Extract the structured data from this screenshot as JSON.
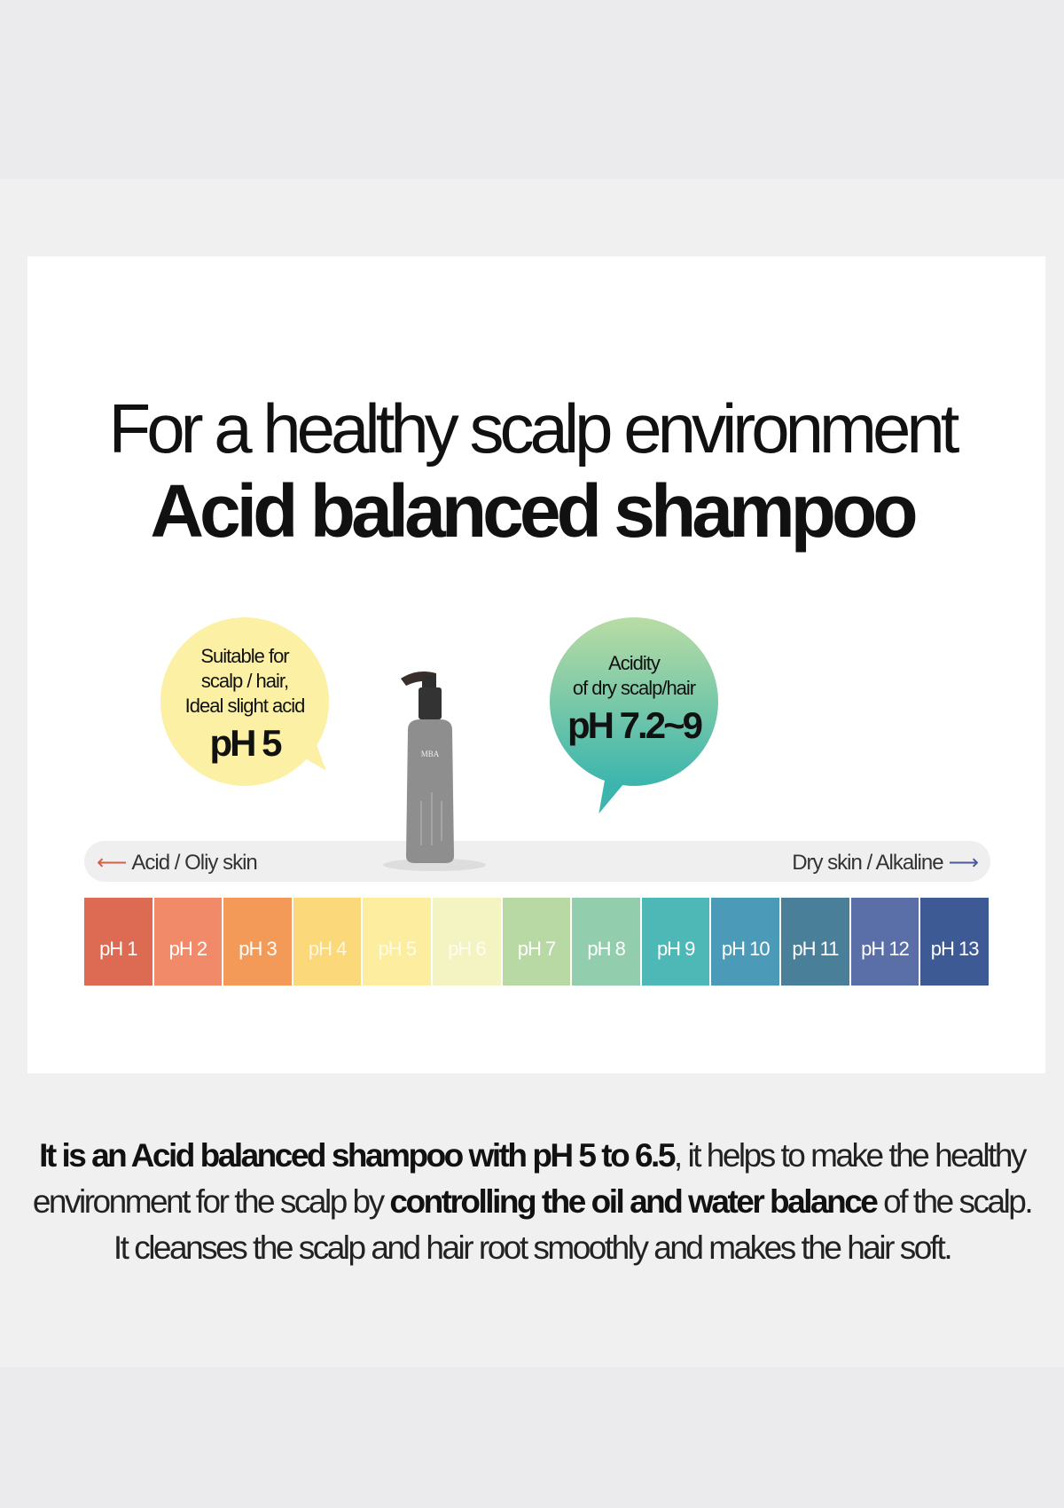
{
  "heading": {
    "line1": "For a healthy scalp environment",
    "line2": "Acid balanced shampoo"
  },
  "bubble_left": {
    "lines": [
      "Suitable for",
      "scalp / hair,",
      "Ideal slight acid"
    ],
    "value": "pH 5",
    "color": "#fbf0a4"
  },
  "bubble_right": {
    "lines": [
      "Acidity",
      "of dry scalp/hair"
    ],
    "value": "pH 7.2~9",
    "color_top": "#b9dca4",
    "color_bottom": "#3bb5ad"
  },
  "product": {
    "brand": "MBA"
  },
  "bar": {
    "left_label": "Acid / Oliy skin",
    "right_label": "Dry skin / Alkaline",
    "left_icon": "arrow-left-icon",
    "right_icon": "arrow-right-icon"
  },
  "ph_scale": [
    {
      "label": "pH 1",
      "color": "#dd6a52"
    },
    {
      "label": "pH 2",
      "color": "#f08a68"
    },
    {
      "label": "pH 3",
      "color": "#f49a58"
    },
    {
      "label": "pH 4",
      "color": "#fbd97a"
    },
    {
      "label": "pH 5",
      "color": "#fdee9f"
    },
    {
      "label": "pH 6",
      "color": "#f4f3c2"
    },
    {
      "label": "pH 7",
      "color": "#b8d9a4"
    },
    {
      "label": "pH 8",
      "color": "#92ceae"
    },
    {
      "label": "pH 9",
      "color": "#4db8b6"
    },
    {
      "label": "pH 10",
      "color": "#4a9ab8"
    },
    {
      "label": "pH 11",
      "color": "#4a7f9a"
    },
    {
      "label": "pH 12",
      "color": "#5a6fa8"
    },
    {
      "label": "pH 13",
      "color": "#3e5a94"
    }
  ],
  "description": {
    "l1_bold": "It is an Acid balanced shampoo with pH 5 to 6.5",
    "l1_rest": ", it helps to make the healthy",
    "l2_a": "environment for the scalp by ",
    "l2_bold": "controlling the oil and water balance",
    "l2_b": " of the scalp.",
    "l3": "It cleanses the scalp and hair root smoothly and makes the hair soft."
  }
}
